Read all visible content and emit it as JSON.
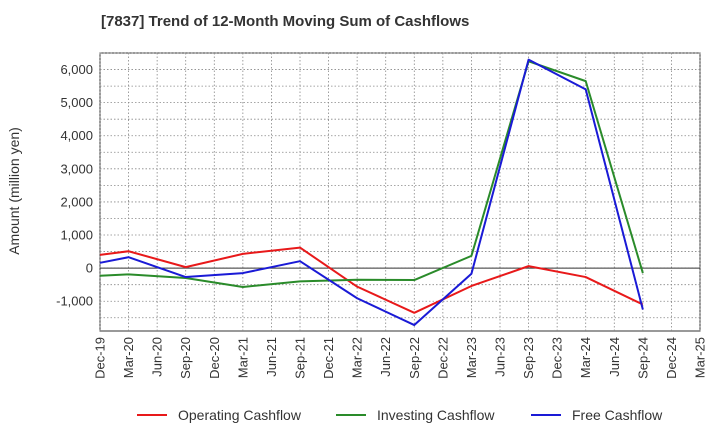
{
  "chart_data": {
    "type": "line",
    "title": "[7837]  Trend of 12-Month Moving Sum of Cashflows",
    "xlabel": "",
    "ylabel": "Amount (million yen)",
    "categories": [
      "Dec-19",
      "Mar-20",
      "Jun-20",
      "Sep-20",
      "Dec-20",
      "Mar-21",
      "Jun-21",
      "Sep-21",
      "Dec-21",
      "Mar-22",
      "Jun-22",
      "Sep-22",
      "Dec-22",
      "Mar-23",
      "Jun-23",
      "Sep-23",
      "Dec-23",
      "Mar-24",
      "Jun-24",
      "Sep-24",
      "Dec-24",
      "Mar-25"
    ],
    "ylim": [
      -1900,
      6500
    ],
    "yticks": [
      -1000,
      0,
      1000,
      2000,
      3000,
      4000,
      5000,
      6000
    ],
    "ytick_labels": [
      "-1,000",
      "0",
      "1,000",
      "2,000",
      "3,000",
      "4,000",
      "5,000",
      "6,000"
    ],
    "grid": true,
    "legend_position": "bottom",
    "series": [
      {
        "name": "Operating Cashflow",
        "color": "#e8191a",
        "values": [
          400,
          510,
          null,
          30,
          null,
          430,
          null,
          620,
          null,
          -560,
          null,
          -1350,
          null,
          -540,
          null,
          60,
          null,
          -270,
          null,
          -1100,
          null,
          null
        ]
      },
      {
        "name": "Investing Cashflow",
        "color": "#2a8b2a",
        "values": [
          -230,
          -190,
          null,
          -300,
          null,
          -570,
          null,
          -400,
          null,
          -350,
          null,
          -360,
          null,
          370,
          null,
          6250,
          null,
          5650,
          null,
          -150,
          null,
          null
        ]
      },
      {
        "name": "Free Cashflow",
        "color": "#1a1ad6",
        "values": [
          160,
          330,
          null,
          -270,
          null,
          -150,
          null,
          210,
          null,
          -910,
          null,
          -1720,
          null,
          -170,
          null,
          6300,
          null,
          5400,
          null,
          -1250,
          null,
          null
        ]
      }
    ]
  }
}
